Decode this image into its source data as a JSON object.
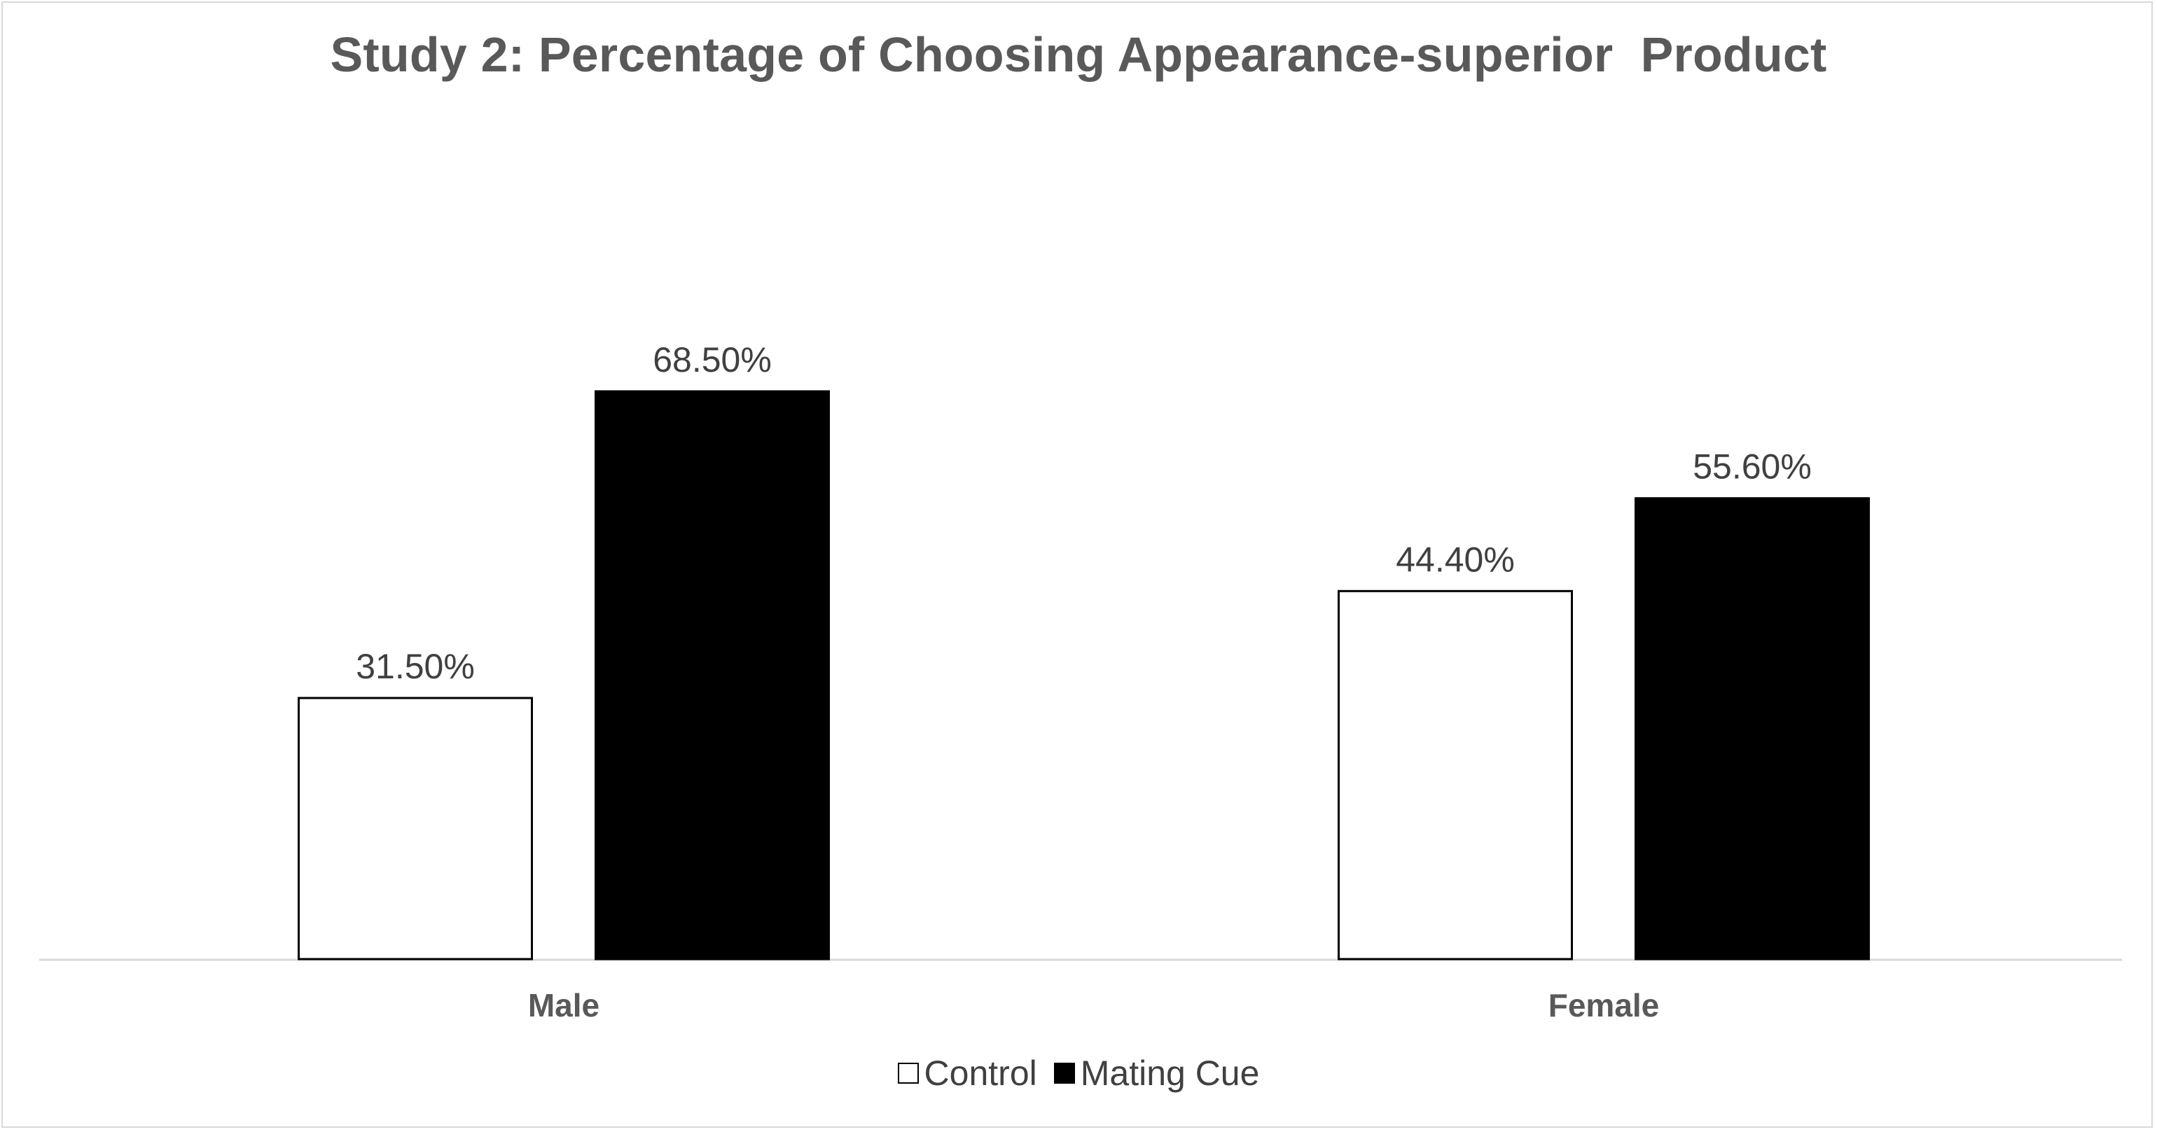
{
  "chart_data": {
    "type": "bar",
    "title": "Study 2: Percentage of Choosing Appearance-superior  Product",
    "categories": [
      "Male",
      "Female"
    ],
    "series": [
      {
        "name": "Control",
        "values": [
          31.5,
          44.4
        ],
        "labels": [
          "31.50%",
          "44.40%"
        ],
        "color": "#ffffff",
        "stroke": "#000000"
      },
      {
        "name": "Mating Cue",
        "values": [
          68.5,
          55.6
        ],
        "labels": [
          "68.50%",
          "55.60%"
        ],
        "color": "#000000",
        "stroke": "#000000"
      }
    ],
    "ylim": [
      0,
      100
    ],
    "grid": false,
    "legend": "bottom",
    "xlabel": "",
    "ylabel": ""
  }
}
